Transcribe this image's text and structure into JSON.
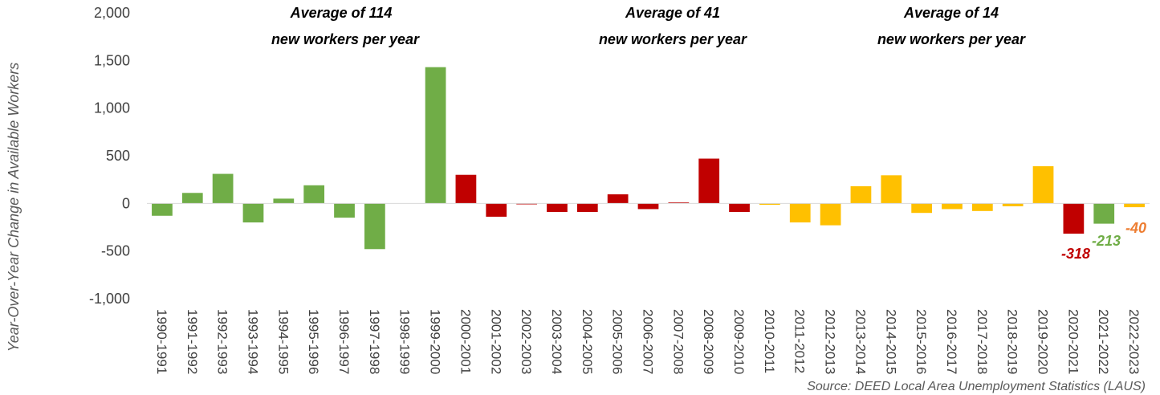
{
  "chart_data": {
    "type": "bar",
    "ylabel": "Year-Over-Year Change in Available Workers",
    "ylim": [
      -1000,
      2000
    ],
    "yticks": [
      -1000,
      -500,
      0,
      500,
      1000,
      1500,
      2000
    ],
    "ytick_labels": [
      "-1,000",
      "-500",
      "0",
      "500",
      "1,000",
      "1,500",
      "2,000"
    ],
    "grid": false,
    "categories": [
      "1990-1991",
      "1991-1992",
      "1992-1993",
      "1993-1994",
      "1994-1995",
      "1995-1996",
      "1996-1997",
      "1997-1998",
      "1998-1999",
      "1999-2000",
      "2000-2001",
      "2001-2002",
      "2002-2003",
      "2003-2004",
      "2004-2005",
      "2005-2006",
      "2006-2007",
      "2007-2008",
      "2008-2009",
      "2009-2010",
      "2010-2011",
      "2011-2012",
      "2012-2013",
      "2013-2014",
      "2014-2015",
      "2015-2016",
      "2016-2017",
      "2017-2018",
      "2018-2019",
      "2019-2020",
      "2020-2021",
      "2021-2022",
      "2022-2023"
    ],
    "values": [
      -130,
      110,
      310,
      -200,
      50,
      190,
      -150,
      -480,
      0,
      1430,
      300,
      -140,
      -10,
      -90,
      -90,
      95,
      -60,
      10,
      470,
      -90,
      -15,
      -200,
      -230,
      180,
      295,
      -100,
      -60,
      -80,
      -30,
      390,
      -318,
      -213,
      -40
    ],
    "colors": {
      "green": "#70ad47",
      "red": "#c00000",
      "yellow": "#ffc000",
      "orange": "#ed7d31"
    },
    "bar_colors": [
      "green",
      "green",
      "green",
      "green",
      "green",
      "green",
      "green",
      "green",
      "green",
      "green",
      "red",
      "red",
      "red",
      "red",
      "red",
      "red",
      "red",
      "red",
      "red",
      "red",
      "yellow",
      "yellow",
      "yellow",
      "yellow",
      "yellow",
      "yellow",
      "yellow",
      "yellow",
      "yellow",
      "yellow",
      "red",
      "green",
      "yellow"
    ],
    "annotations": [
      {
        "line1": "Average of  114",
        "line2": "new workers  per year"
      },
      {
        "line1": "Average of  41",
        "line2": "new workers  per year"
      },
      {
        "line1": "Average of  14",
        "line2": "new workers  per year"
      }
    ],
    "data_labels": [
      {
        "index": 30,
        "text": "-318",
        "color": "red"
      },
      {
        "index": 31,
        "text": "-213",
        "color": "green"
      },
      {
        "index": 32,
        "text": "-40",
        "color": "orange"
      }
    ],
    "source": "Source: DEED Local Area Unemployment Statistics (LAUS)"
  }
}
